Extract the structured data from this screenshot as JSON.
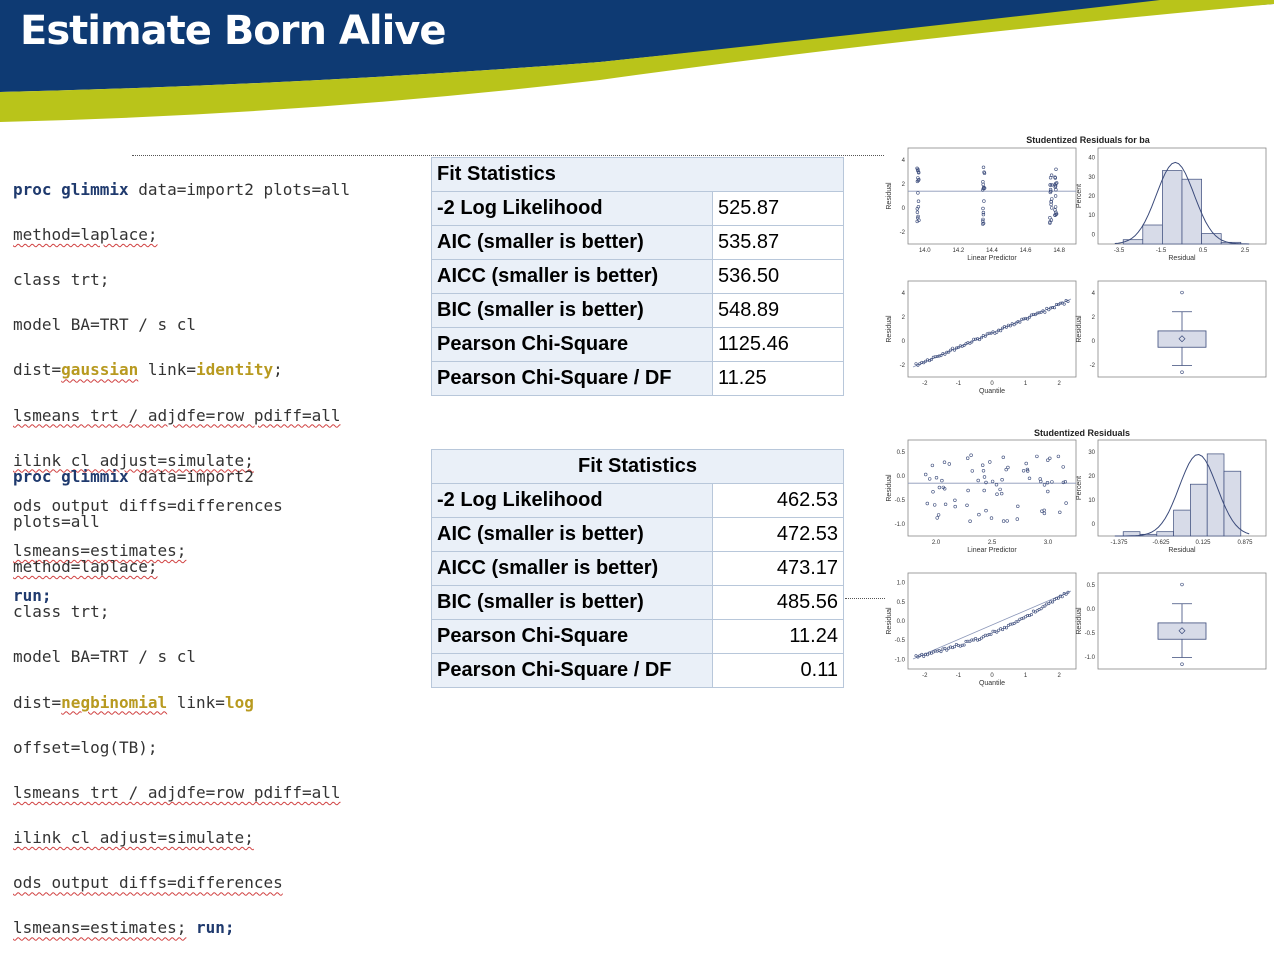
{
  "slide": {
    "title": "Estimate Born Alive"
  },
  "code1": {
    "lines": [
      [
        "proc glimmix",
        " data=import2 plots=all"
      ],
      [
        "",
        "method=laplace;"
      ],
      [
        "",
        "class trt;"
      ],
      [
        "",
        "model BA=TRT / s cl"
      ],
      [
        "dist=",
        "gaussian",
        " link=",
        "identity",
        ";"
      ],
      [
        "",
        "lsmeans trt / adjdfe=row pdiff=all"
      ],
      [
        "",
        "ilink cl adjust=simulate;"
      ],
      [
        "",
        "ods output diffs=differences"
      ],
      [
        "",
        "lsmeans=estimates;"
      ],
      [
        "run;"
      ]
    ]
  },
  "code2": {
    "lines": [
      [
        "proc glimmix",
        " data=import2"
      ],
      [
        "",
        "plots=all"
      ],
      [
        "",
        "method=laplace;"
      ],
      [
        "",
        "class trt;"
      ],
      [
        "",
        "model BA=TRT / s cl"
      ],
      [
        "dist=",
        "negbinomial",
        " link=",
        "log"
      ],
      [
        "",
        "offset=log(TB);"
      ],
      [
        "",
        "lsmeans trt / adjdfe=row pdiff=all"
      ],
      [
        "",
        "ilink cl adjust=simulate;"
      ],
      [
        "",
        "ods output diffs=differences"
      ],
      [
        "",
        "lsmeans=estimates;",
        " run;"
      ]
    ]
  },
  "table1": {
    "header": "Fit Statistics",
    "rows": [
      {
        "label": "-2 Log Likelihood",
        "value": "525.87"
      },
      {
        "label": "AIC (smaller is better)",
        "value": "535.87"
      },
      {
        "label": "AICC (smaller is better)",
        "value": "536.50"
      },
      {
        "label": "BIC (smaller is better)",
        "value": "548.89"
      },
      {
        "label": "Pearson Chi-Square",
        "value": "1125.46"
      },
      {
        "label": "Pearson Chi-Square / DF",
        "value": "11.25"
      }
    ]
  },
  "table2": {
    "header": "Fit Statistics",
    "rows": [
      {
        "label": "-2 Log Likelihood",
        "value": "462.53"
      },
      {
        "label": "AIC (smaller is better)",
        "value": "472.53"
      },
      {
        "label": "AICC (smaller is better)",
        "value": "473.17"
      },
      {
        "label": "BIC (smaller is better)",
        "value": "485.56"
      },
      {
        "label": "Pearson Chi-Square",
        "value": "11.24"
      },
      {
        "label": "Pearson Chi-Square / DF",
        "value": "0.11"
      }
    ]
  },
  "panel1": {
    "title": "Studentized Residuals for ba",
    "scatter": {
      "xlabel": "Linear Predictor",
      "ylabel": "Residual",
      "xticks": [
        "14.0",
        "14.2",
        "14.4",
        "14.6",
        "14.8"
      ],
      "yticks": [
        "4",
        "2",
        "0",
        "-2"
      ]
    },
    "hist": {
      "xlabel": "Residual",
      "ylabel": "Percent",
      "xticks": [
        "-3.5",
        "-1.5",
        "0.5",
        "2.5"
      ],
      "yticks": [
        "40",
        "30",
        "20",
        "10",
        "0"
      ]
    },
    "qq": {
      "xlabel": "Quantile",
      "ylabel": "Residual",
      "xticks": [
        "-2",
        "-1",
        "0",
        "1",
        "2"
      ],
      "yticks": [
        "4",
        "2",
        "0",
        "-2"
      ]
    },
    "box": {
      "ylabel": "Residual",
      "yticks": [
        "4",
        "2",
        "0",
        "-2"
      ]
    }
  },
  "panel2": {
    "title": "Studentized Residuals",
    "scatter": {
      "xlabel": "Linear Predictor",
      "ylabel": "Residual",
      "xticks": [
        "2.0",
        "2.5",
        "3.0"
      ],
      "yticks": [
        "0.5",
        "0.0",
        "-0.5",
        "-1.0"
      ]
    },
    "hist": {
      "xlabel": "Residual",
      "ylabel": "Percent",
      "xticks": [
        "-1.375",
        "-0.625",
        "0.125",
        "0.875"
      ],
      "yticks": [
        "30",
        "20",
        "10",
        "0"
      ]
    },
    "qq": {
      "xlabel": "Quantile",
      "ylabel": "Residual",
      "xticks": [
        "-2",
        "-1",
        "0",
        "1",
        "2"
      ],
      "yticks": [
        "1.0",
        "0.5",
        "0.0",
        "-0.5",
        "-1.0"
      ]
    },
    "box": {
      "ylabel": "Residual",
      "yticks": [
        "0.5",
        "0.0",
        "-0.5",
        "-1.0"
      ]
    }
  },
  "colors": {
    "navy": "#0e3a73",
    "lime": "#b9c41a",
    "plotline": "#3a4a7a"
  }
}
